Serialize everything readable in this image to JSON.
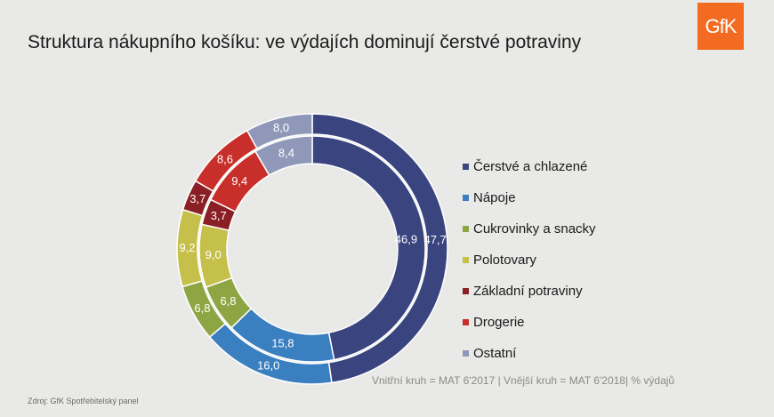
{
  "title": "Struktura nákupního košíku: ve výdajích dominují čerstvé potraviny",
  "logo": {
    "text": "GfK",
    "color": "#f26b21"
  },
  "note": "Vnitřní kruh = MAT 6'2017 | Vnější kruh = MAT 6'2018| % výdajů",
  "source": "Zdroj: GfK Spotřebitelský panel",
  "chart_data": {
    "type": "donut",
    "categories": [
      "Čerstvé a chlazené",
      "Nápoje",
      "Cukrovinky a snacky",
      "Polotovary",
      "Základní potraviny",
      "Drogerie",
      "Ostatní"
    ],
    "colors": [
      "#3a4580",
      "#3a7fc0",
      "#8ea543",
      "#c5c04a",
      "#8a1f25",
      "#c92f2a",
      "#8f98b8"
    ],
    "series": [
      {
        "ring": "inner",
        "values": [
          46.9,
          15.8,
          6.8,
          9.0,
          3.7,
          9.4,
          8.4
        ],
        "labels": [
          "46,9",
          "15,8",
          "6,8",
          "9,0",
          "3,7",
          "9,4",
          "8,4"
        ]
      },
      {
        "ring": "outer",
        "values": [
          47.7,
          16.0,
          6.8,
          9.2,
          3.7,
          8.6,
          8.0
        ],
        "labels": [
          "47,7",
          "16,0",
          "6,8",
          "9,2",
          "3,7",
          "8,6",
          "8,0"
        ]
      }
    ],
    "legend_position": "right"
  }
}
